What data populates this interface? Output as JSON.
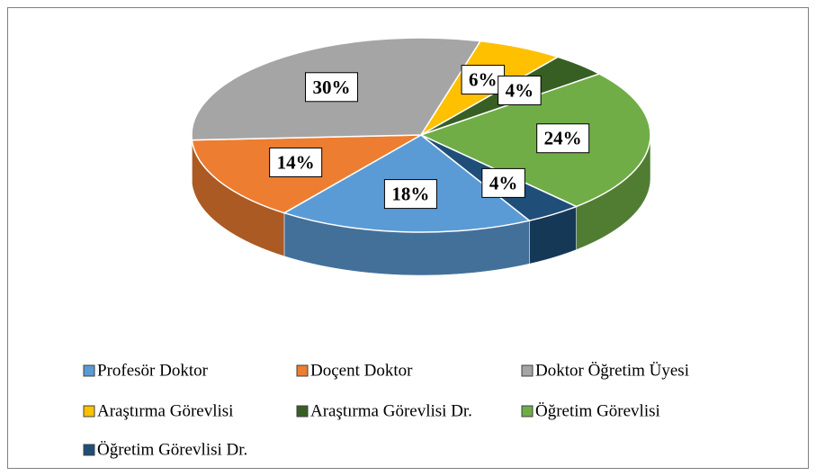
{
  "chart_data": {
    "type": "pie",
    "categories": [
      "Profesör Doktor",
      "Doçent Doktor",
      "Doktor Öğretim Üyesi",
      "Araştırma Görevlisi",
      "Araştırma Görevlisi Dr.",
      "Öğretim Görevlisi",
      "Öğretim Görevlisi Dr."
    ],
    "values": [
      18,
      14,
      30,
      6,
      4,
      24,
      4
    ],
    "value_labels": [
      "18%",
      "14%",
      "30%",
      "6%",
      "4%",
      "24%",
      "4%"
    ],
    "colors": [
      "#5b9bd5",
      "#ed7d31",
      "#a5a5a5",
      "#ffc000",
      "#375f23",
      "#70ad47",
      "#1f4e79"
    ],
    "legend": "bottom"
  }
}
